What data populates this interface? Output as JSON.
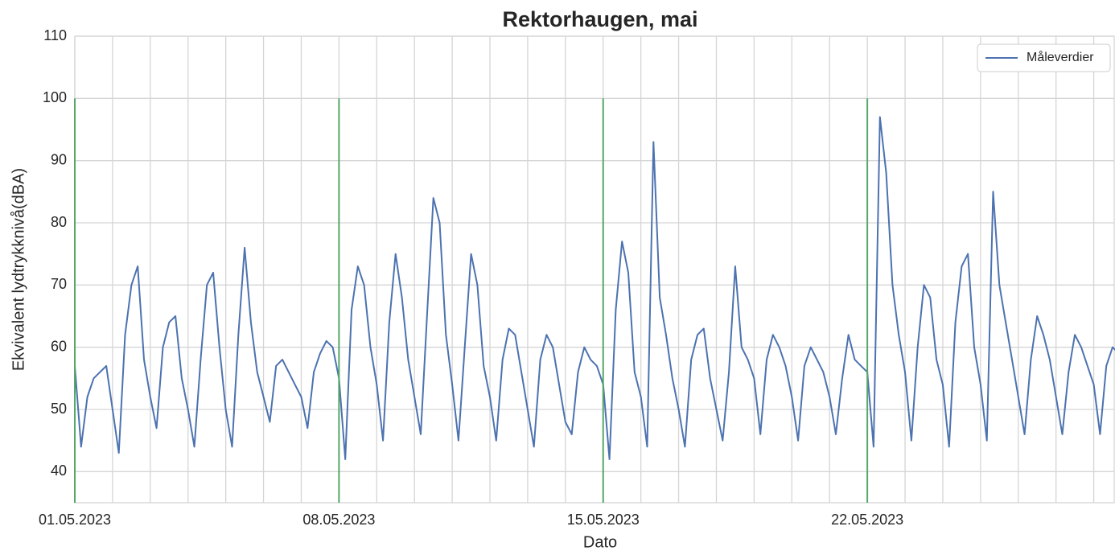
{
  "chart_data": {
    "type": "line",
    "title": "Rektorhaugen, mai",
    "xlabel": "Dato",
    "ylabel": "Ekvivalent lydtrykknivå(dBA)",
    "x": [
      "2023-05-01T00:00",
      "2023-05-01T04:00",
      "2023-05-01T08:00",
      "2023-05-01T12:00",
      "2023-05-01T16:00",
      "2023-05-01T20:00",
      "2023-05-02T00:00",
      "2023-05-02T04:00",
      "2023-05-02T08:00",
      "2023-05-02T12:00",
      "2023-05-02T16:00",
      "2023-05-02T20:00",
      "2023-05-03T00:00",
      "2023-05-03T04:00",
      "2023-05-03T08:00",
      "2023-05-03T12:00",
      "2023-05-03T16:00",
      "2023-05-03T20:00",
      "2023-05-04T00:00",
      "2023-05-04T04:00",
      "2023-05-04T08:00",
      "2023-05-04T12:00",
      "2023-05-04T16:00",
      "2023-05-04T20:00",
      "2023-05-05T00:00",
      "2023-05-05T04:00",
      "2023-05-05T08:00",
      "2023-05-05T12:00",
      "2023-05-05T16:00",
      "2023-05-05T20:00",
      "2023-05-06T00:00",
      "2023-05-06T04:00",
      "2023-05-06T08:00",
      "2023-05-06T12:00",
      "2023-05-06T16:00",
      "2023-05-06T20:00",
      "2023-05-07T00:00",
      "2023-05-07T04:00",
      "2023-05-07T08:00",
      "2023-05-07T12:00",
      "2023-05-07T16:00",
      "2023-05-07T20:00",
      "2023-05-08T00:00",
      "2023-05-08T04:00",
      "2023-05-08T08:00",
      "2023-05-08T12:00",
      "2023-05-08T16:00",
      "2023-05-08T20:00",
      "2023-05-09T00:00",
      "2023-05-09T04:00",
      "2023-05-09T08:00",
      "2023-05-09T12:00",
      "2023-05-09T16:00",
      "2023-05-09T20:00",
      "2023-05-10T00:00",
      "2023-05-10T04:00",
      "2023-05-10T08:00",
      "2023-05-10T12:00",
      "2023-05-10T16:00",
      "2023-05-10T20:00",
      "2023-05-11T00:00",
      "2023-05-11T04:00",
      "2023-05-11T08:00",
      "2023-05-11T12:00",
      "2023-05-11T16:00",
      "2023-05-11T20:00",
      "2023-05-12T00:00",
      "2023-05-12T04:00",
      "2023-05-12T08:00",
      "2023-05-12T12:00",
      "2023-05-12T16:00",
      "2023-05-12T20:00",
      "2023-05-13T00:00",
      "2023-05-13T04:00",
      "2023-05-13T08:00",
      "2023-05-13T12:00",
      "2023-05-13T16:00",
      "2023-05-13T20:00",
      "2023-05-14T00:00",
      "2023-05-14T04:00",
      "2023-05-14T08:00",
      "2023-05-14T12:00",
      "2023-05-14T16:00",
      "2023-05-14T20:00",
      "2023-05-15T00:00",
      "2023-05-15T04:00",
      "2023-05-15T08:00",
      "2023-05-15T12:00",
      "2023-05-15T16:00",
      "2023-05-15T20:00",
      "2023-05-16T00:00",
      "2023-05-16T04:00",
      "2023-05-16T08:00",
      "2023-05-16T12:00",
      "2023-05-16T16:00",
      "2023-05-16T20:00",
      "2023-05-17T00:00",
      "2023-05-17T04:00",
      "2023-05-17T08:00",
      "2023-05-17T12:00",
      "2023-05-17T16:00",
      "2023-05-17T20:00",
      "2023-05-18T00:00",
      "2023-05-18T04:00",
      "2023-05-18T08:00",
      "2023-05-18T12:00",
      "2023-05-18T16:00",
      "2023-05-18T20:00",
      "2023-05-19T00:00",
      "2023-05-19T04:00",
      "2023-05-19T08:00",
      "2023-05-19T12:00",
      "2023-05-19T16:00",
      "2023-05-19T20:00",
      "2023-05-20T00:00",
      "2023-05-20T04:00",
      "2023-05-20T08:00",
      "2023-05-20T12:00",
      "2023-05-20T16:00",
      "2023-05-20T20:00",
      "2023-05-21T00:00",
      "2023-05-21T04:00",
      "2023-05-21T08:00",
      "2023-05-21T12:00",
      "2023-05-21T16:00",
      "2023-05-21T20:00",
      "2023-05-22T00:00",
      "2023-05-22T04:00",
      "2023-05-22T08:00",
      "2023-05-22T12:00",
      "2023-05-22T16:00",
      "2023-05-22T20:00",
      "2023-05-23T00:00",
      "2023-05-23T04:00",
      "2023-05-23T08:00",
      "2023-05-23T12:00",
      "2023-05-23T16:00",
      "2023-05-23T20:00",
      "2023-05-24T00:00",
      "2023-05-24T04:00",
      "2023-05-24T08:00",
      "2023-05-24T12:00",
      "2023-05-24T16:00",
      "2023-05-24T20:00",
      "2023-05-25T00:00",
      "2023-05-25T04:00",
      "2023-05-25T08:00",
      "2023-05-25T12:00",
      "2023-05-25T16:00",
      "2023-05-25T20:00",
      "2023-05-26T00:00",
      "2023-05-26T04:00",
      "2023-05-26T08:00",
      "2023-05-26T12:00",
      "2023-05-26T16:00",
      "2023-05-26T20:00",
      "2023-05-27T00:00",
      "2023-05-27T04:00",
      "2023-05-27T08:00",
      "2023-05-27T12:00",
      "2023-05-27T16:00",
      "2023-05-27T20:00",
      "2023-05-28T00:00",
      "2023-05-28T04:00",
      "2023-05-28T08:00",
      "2023-05-28T12:00",
      "2023-05-28T16:00",
      "2023-05-28T20:00",
      "2023-05-29T00:00",
      "2023-05-29T04:00",
      "2023-05-29T08:00",
      "2023-05-29T12:00"
    ],
    "series": [
      {
        "name": "Måleverdier",
        "color": "#4c72b0",
        "values": [
          57,
          44,
          52,
          55,
          56,
          57,
          50,
          43,
          62,
          70,
          73,
          58,
          52,
          47,
          60,
          64,
          65,
          55,
          50,
          44,
          58,
          70,
          72,
          60,
          50,
          44,
          62,
          76,
          64,
          56,
          52,
          48,
          57,
          58,
          56,
          54,
          52,
          47,
          56,
          59,
          61,
          60,
          55,
          42,
          66,
          73,
          70,
          60,
          54,
          45,
          64,
          75,
          68,
          58,
          52,
          46,
          65,
          84,
          80,
          62,
          54,
          45,
          60,
          75,
          70,
          57,
          52,
          45,
          58,
          63,
          62,
          56,
          50,
          44,
          58,
          62,
          60,
          54,
          48,
          46,
          56,
          60,
          58,
          57,
          54,
          42,
          66,
          77,
          72,
          56,
          52,
          44,
          93,
          68,
          62,
          55,
          50,
          44,
          58,
          62,
          63,
          55,
          50,
          45,
          56,
          73,
          60,
          58,
          55,
          46,
          58,
          62,
          60,
          57,
          52,
          45,
          57,
          60,
          58,
          56,
          52,
          46,
          55,
          62,
          58,
          57,
          56,
          44,
          97,
          88,
          70,
          62,
          56,
          45,
          60,
          70,
          68,
          58,
          54,
          44,
          64,
          73,
          75,
          60,
          54,
          45,
          85,
          70,
          64,
          58,
          52,
          46,
          58,
          65,
          62,
          58,
          52,
          46,
          56,
          62,
          60,
          57,
          54,
          46,
          57,
          60,
          59,
          55,
          52,
          54,
          58,
          56
        ]
      }
    ],
    "vlines": {
      "x": [
        "2023-05-01",
        "2023-05-08",
        "2023-05-15",
        "2023-05-22"
      ],
      "ymax": 100,
      "color": "#55a868"
    },
    "xlim": [
      "2023-05-01T00:00",
      "2023-05-28T13:00"
    ],
    "xticks": [
      {
        "value": "2023-05-01",
        "label": "01.05.2023"
      },
      {
        "value": "2023-05-08",
        "label": "08.05.2023"
      },
      {
        "value": "2023-05-15",
        "label": "15.05.2023"
      },
      {
        "value": "2023-05-22",
        "label": "22.05.2023"
      }
    ],
    "xgrid": [
      "2023-05-01",
      "2023-05-02",
      "2023-05-03",
      "2023-05-04",
      "2023-05-05",
      "2023-05-06",
      "2023-05-07",
      "2023-05-08",
      "2023-05-09",
      "2023-05-10",
      "2023-05-11",
      "2023-05-12",
      "2023-05-13",
      "2023-05-14",
      "2023-05-15",
      "2023-05-16",
      "2023-05-17",
      "2023-05-18",
      "2023-05-19",
      "2023-05-20",
      "2023-05-21",
      "2023-05-22",
      "2023-05-23",
      "2023-05-24",
      "2023-05-25",
      "2023-05-26",
      "2023-05-27",
      "2023-05-28"
    ],
    "ylim": [
      35,
      110
    ],
    "yticks": [
      40,
      50,
      60,
      70,
      80,
      90,
      100,
      110
    ],
    "grid": true,
    "legend": "upper right"
  }
}
